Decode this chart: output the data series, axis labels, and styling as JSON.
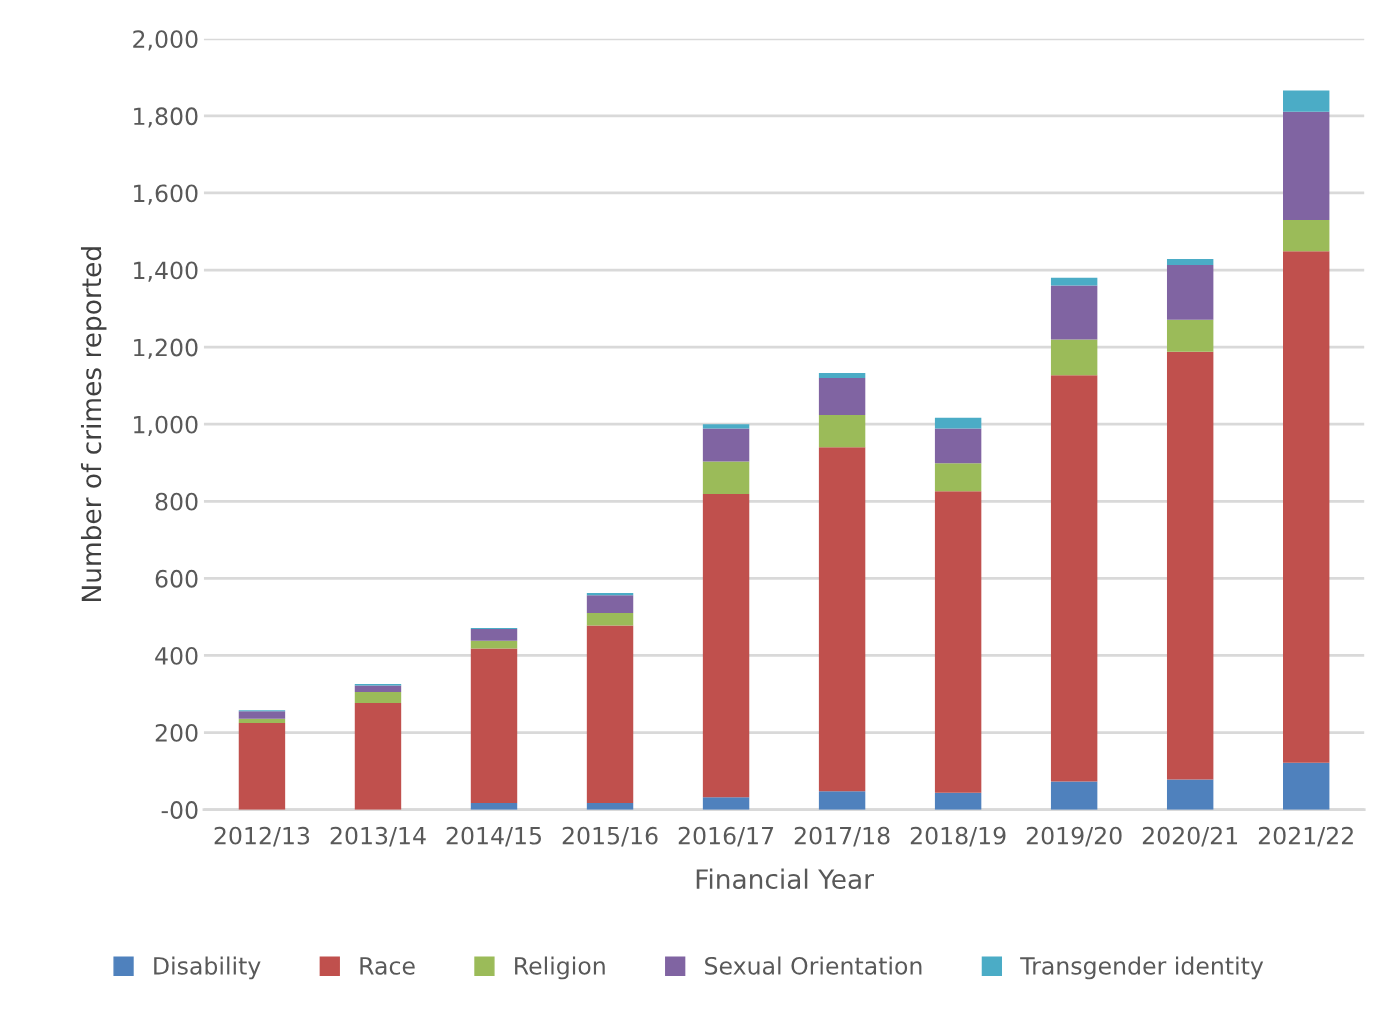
{
  "chart_data": {
    "type": "bar",
    "stacked": true,
    "xlabel": "Financial Year",
    "ylabel": "Number of crimes reported",
    "categories": [
      "2012/13",
      "2013/14",
      "2014/15",
      "2015/16",
      "2016/17",
      "2017/18",
      "2018/19",
      "2019/20",
      "2020/21",
      "2021/22"
    ],
    "series": [
      {
        "name": "Disability",
        "color": "#4f81bd",
        "values": [
          0,
          0,
          17,
          17,
          32,
          48,
          44,
          73,
          78,
          122
        ]
      },
      {
        "name": "Race",
        "color": "#c0504d",
        "values": [
          225,
          277,
          401,
          461,
          787,
          892,
          782,
          1054,
          1110,
          1327
        ]
      },
      {
        "name": "Religion",
        "color": "#9bbb59",
        "values": [
          11,
          28,
          20,
          32,
          84,
          84,
          73,
          93,
          83,
          81
        ]
      },
      {
        "name": "Sexual Orientation",
        "color": "#8064a2",
        "values": [
          19,
          17,
          31,
          46,
          86,
          96,
          90,
          140,
          142,
          281
        ]
      },
      {
        "name": "Transgender identity",
        "color": "#4bacc6",
        "values": [
          3,
          4,
          2,
          6,
          11,
          13,
          28,
          20,
          16,
          55
        ]
      }
    ],
    "ylim": [
      0,
      2000
    ],
    "yticks": [
      {
        "value": 0,
        "label": "-00"
      },
      {
        "value": 200,
        "label": "200"
      },
      {
        "value": 400,
        "label": "400"
      },
      {
        "value": 600,
        "label": "600"
      },
      {
        "value": 800,
        "label": "800"
      },
      {
        "value": 1000,
        "label": "1,000"
      },
      {
        "value": 1200,
        "label": "1,200"
      },
      {
        "value": 1400,
        "label": "1,400"
      },
      {
        "value": 1600,
        "label": "1,600"
      },
      {
        "value": 1800,
        "label": "1,800"
      },
      {
        "value": 2000,
        "label": "2,000"
      }
    ],
    "grid": "y",
    "legend": "bottom"
  }
}
